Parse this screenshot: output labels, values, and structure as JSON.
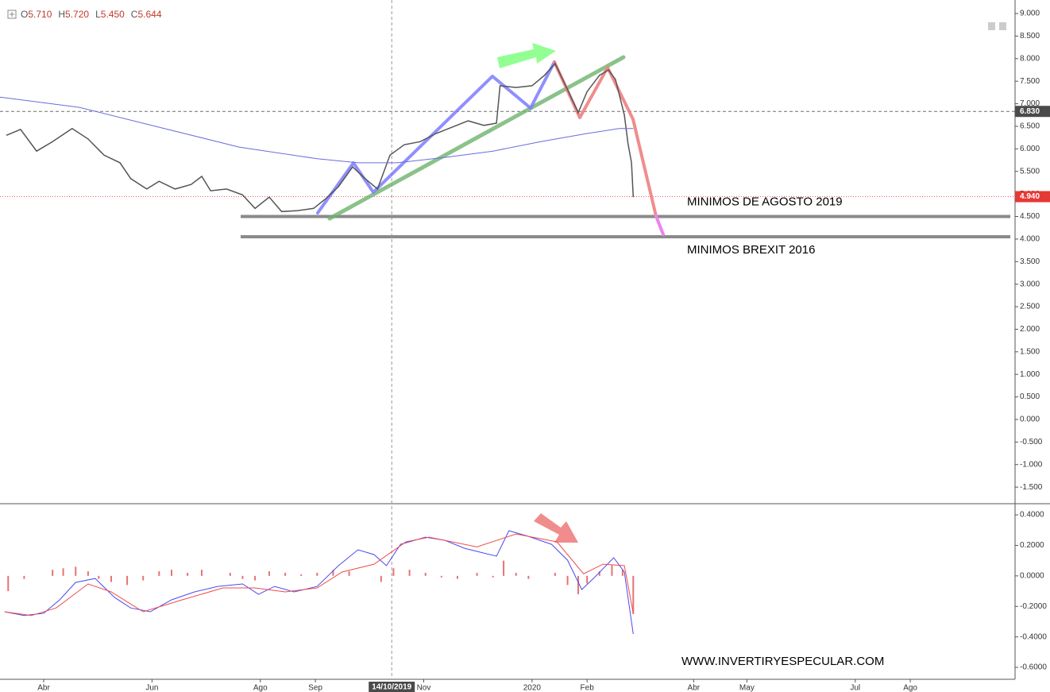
{
  "chart_data": [
    {
      "type": "line",
      "ohlc": [
        {
          "key": "O",
          "value": 5.71,
          "label": "5.710"
        },
        {
          "key": "H",
          "value": 5.72,
          "label": "5.720"
        },
        {
          "key": "L",
          "value": 5.45,
          "label": "5.450"
        },
        {
          "key": "C",
          "value": 5.644,
          "label": "5.644"
        }
      ],
      "xlim": [
        65.4,
        637
      ],
      "ylim": [
        -1.85,
        9.3
      ],
      "yticks": [
        {
          "value": 9,
          "label": "9.000"
        },
        {
          "value": 8.5,
          "label": "8.500"
        },
        {
          "value": 8,
          "label": "8.000"
        },
        {
          "value": 7.5,
          "label": "7.500"
        },
        {
          "value": 7,
          "label": "7.000"
        },
        {
          "value": 6.5,
          "label": "6.500"
        },
        {
          "value": 6,
          "label": "6.000"
        },
        {
          "value": 5.5,
          "label": "5.500"
        },
        {
          "value": 5,
          "label": "5.000"
        },
        {
          "value": 4.5,
          "label": "4.500"
        },
        {
          "value": 4,
          "label": "4.000"
        },
        {
          "value": 3.5,
          "label": "3.500"
        },
        {
          "value": 3,
          "label": "3.000"
        },
        {
          "value": 2.5,
          "label": "2.500"
        },
        {
          "value": 2,
          "label": "2.000"
        },
        {
          "value": 1.5,
          "label": "1.500"
        },
        {
          "value": 1,
          "label": "1.000"
        },
        {
          "value": 0.5,
          "label": "0.500"
        },
        {
          "value": 0,
          "label": "0.000"
        },
        {
          "value": -0.5,
          "label": "-0.500"
        },
        {
          "value": -1,
          "label": "-1.000"
        },
        {
          "value": -1.5,
          "label": "-1.500"
        }
      ],
      "series": [
        {
          "color": "#555555",
          "x": [
            69,
            77,
            86,
            95,
            106,
            115,
            124,
            133,
            139,
            148,
            155,
            164,
            173,
            179,
            184,
            193,
            202,
            209,
            217,
            224,
            233,
            242,
            249,
            256,
            264,
            271,
            278,
            285,
            293,
            302,
            311,
            320,
            329,
            338,
            345,
            347,
            356,
            365,
            372,
            378,
            384,
            391,
            396,
            403,
            408,
            412,
            417,
            419,
            421,
            422
          ],
          "values": [
            6.3,
            6.43,
            5.95,
            6.16,
            6.45,
            6.22,
            5.86,
            5.69,
            5.34,
            5.11,
            5.28,
            5.11,
            5.21,
            5.39,
            5.07,
            5.11,
            4.98,
            4.68,
            4.93,
            4.61,
            4.63,
            4.68,
            4.9,
            5.16,
            5.6,
            5.34,
            5.11,
            5.86,
            6.09,
            6.16,
            6.34,
            6.48,
            6.62,
            6.52,
            6.57,
            7.4,
            7.36,
            7.4,
            7.63,
            7.89,
            7.4,
            6.8,
            7.27,
            7.63,
            7.75,
            7.54,
            6.75,
            6.13,
            5.69,
            4.93
          ]
        },
        {
          "color": "#6b6bdf",
          "x": [
            65,
            110,
            155,
            200,
            244,
            267,
            289,
            316,
            343,
            370,
            396,
            414,
            422
          ],
          "values": [
            7.15,
            6.92,
            6.48,
            6.04,
            5.78,
            5.69,
            5.69,
            5.81,
            5.95,
            6.16,
            6.34,
            6.45,
            6.45
          ]
        }
      ],
      "price_markers": [
        {
          "value": 6.83,
          "label": "6.830",
          "color": "#4a4a4a"
        },
        {
          "value": 4.94,
          "label": "4.940",
          "color": "#e53935"
        }
      ],
      "levels": [
        {
          "value": 4.5,
          "label": "MINIMOS DE AGOSTO 2019"
        },
        {
          "value": 4.05,
          "label": "MINIMOS BREXIT 2016"
        }
      ]
    },
    {
      "type": "line",
      "xlim": [
        65.4,
        637
      ],
      "ylim": [
        -0.678,
        0.468
      ],
      "yticks": [
        {
          "value": 0.4,
          "label": "0.4000"
        },
        {
          "value": 0.2,
          "label": "0.2000"
        },
        {
          "value": 0,
          "label": "0.0000"
        },
        {
          "value": -0.2,
          "label": "-0.2000"
        },
        {
          "value": -0.4,
          "label": "-0.4000"
        },
        {
          "value": -0.6,
          "label": "-0.6000"
        }
      ],
      "xticks": [
        {
          "value": 90,
          "label": "Abr"
        },
        {
          "value": 151,
          "label": "Jun"
        },
        {
          "value": 212,
          "label": "Ago"
        },
        {
          "value": 243,
          "label": "Sep"
        },
        {
          "value": 304,
          "label": "Nov"
        },
        {
          "value": 365,
          "label": "2020"
        },
        {
          "value": 396,
          "label": "Feb"
        },
        {
          "value": 456,
          "label": "Abr"
        },
        {
          "value": 486,
          "label": "May"
        },
        {
          "value": 547,
          "label": "Jul"
        },
        {
          "value": 578,
          "label": "Ago"
        }
      ],
      "crosshair": {
        "value": 286,
        "label": "14/10/2019"
      },
      "series": [
        {
          "color": "#4b4bef",
          "x": [
            68,
            79,
            90,
            99,
            108,
            119,
            130,
            139,
            150,
            162,
            175,
            188,
            202,
            211,
            220,
            231,
            244,
            256,
            267,
            276,
            283,
            291,
            305,
            316,
            327,
            336,
            345,
            352,
            363,
            376,
            385,
            393,
            401,
            411,
            417,
            422
          ],
          "values": [
            -0.235,
            -0.26,
            -0.245,
            -0.157,
            -0.043,
            -0.017,
            -0.142,
            -0.21,
            -0.235,
            -0.157,
            -0.105,
            -0.069,
            -0.053,
            -0.121,
            -0.069,
            -0.105,
            -0.069,
            0.067,
            0.171,
            0.14,
            0.067,
            0.207,
            0.254,
            0.233,
            0.181,
            0.155,
            0.129,
            0.296,
            0.259,
            0.207,
            0.103,
            -0.09,
            -0.001,
            0.119,
            0.025,
            -0.381
          ]
        },
        {
          "color": "#ef4b4b",
          "x": [
            68,
            83,
            97,
            115,
            128,
            146,
            168,
            191,
            209,
            226,
            244,
            258,
            276,
            294,
            307,
            334,
            356,
            379,
            394,
            405,
            417,
            422
          ],
          "values": [
            -0.235,
            -0.26,
            -0.21,
            -0.053,
            -0.105,
            -0.235,
            -0.157,
            -0.079,
            -0.079,
            -0.105,
            -0.079,
            0.025,
            0.077,
            0.223,
            0.254,
            0.19,
            0.275,
            0.223,
            0.014,
            0.077,
            0.067,
            -0.246
          ]
        }
      ],
      "histogram": {
        "color": "#e57373",
        "x": [
          70,
          79,
          88,
          95,
          101,
          108,
          115,
          121,
          128,
          137,
          146,
          155,
          162,
          171,
          179,
          186,
          195,
          202,
          209,
          217,
          226,
          235,
          244,
          253,
          262,
          271,
          280,
          287,
          296,
          305,
          314,
          323,
          334,
          343,
          349,
          356,
          363,
          370,
          378,
          385,
          391,
          396,
          403,
          410,
          416,
          422
        ],
        "values": [
          -0.1,
          -0.02,
          0.0,
          0.04,
          0.05,
          0.06,
          0.03,
          -0.02,
          -0.04,
          -0.06,
          -0.03,
          0.03,
          0.04,
          0.02,
          0.04,
          0.0,
          0.02,
          -0.02,
          -0.03,
          0.03,
          0.02,
          0.01,
          0.02,
          0.04,
          0.03,
          0.0,
          -0.04,
          0.05,
          0.04,
          0.02,
          -0.01,
          -0.02,
          0.02,
          -0.01,
          0.1,
          0.02,
          -0.02,
          0.0,
          0.02,
          -0.06,
          -0.12,
          -0.05,
          0.03,
          0.07,
          0.04,
          -0.25
        ]
      },
      "watermark": "WWW.INVERTIRYESPECULAR.COM"
    }
  ]
}
